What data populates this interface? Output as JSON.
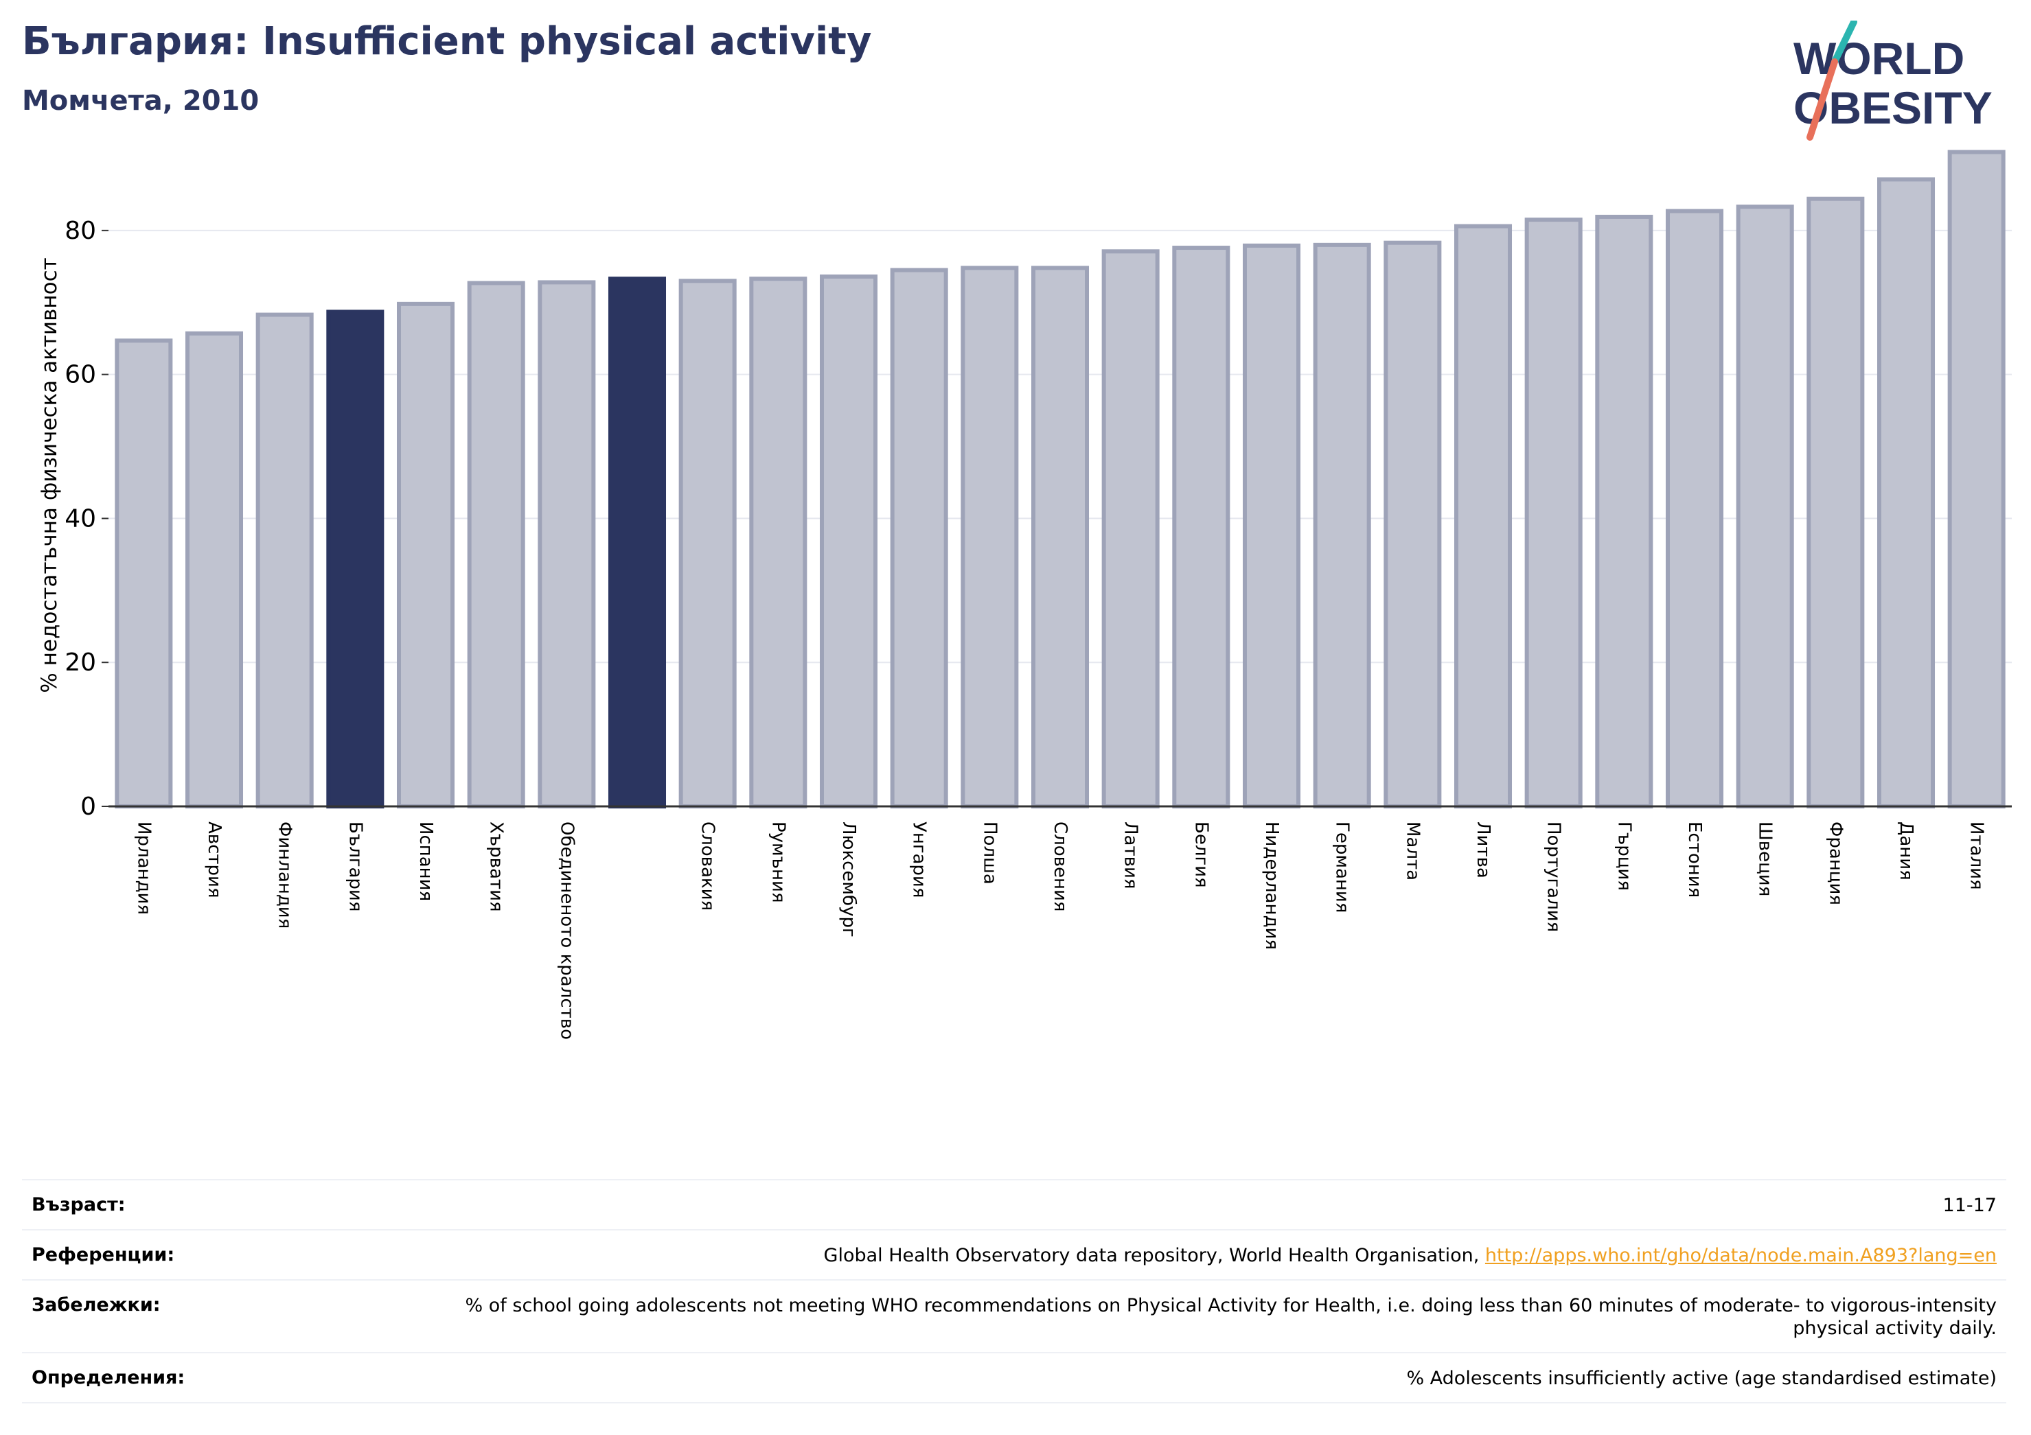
{
  "header": {
    "title": "България: Insufficient physical activity",
    "subtitle": "Момчета, 2010"
  },
  "logo": {
    "line1": "WORLD",
    "line2": "OBESITY",
    "colors": {
      "text": "#2b3560",
      "slash_top": "#2bb5b0",
      "slash_bottom": "#e8705a"
    }
  },
  "chart_data": {
    "type": "bar",
    "ylabel": "% недостатъчна физическа активност",
    "ylim": [
      0,
      92
    ],
    "yticks": [
      0,
      20,
      40,
      60,
      80
    ],
    "grid": true,
    "categories": [
      "Ирландия",
      "Австрия",
      "Финландия",
      "България",
      "Испания",
      "Хърватия",
      "Обединеното кралство",
      "",
      "Словакия",
      "Румъния",
      "Люксембург",
      "Унгария",
      "Полша",
      "Словения",
      "Латвия",
      "Белгия",
      "Нидерландия",
      "Германия",
      "Малта",
      "Литва",
      "Португалия",
      "Гърция",
      "Естония",
      "Швеция",
      "Франция",
      "Дания",
      "Италия"
    ],
    "values": [
      64.7,
      65.7,
      68.3,
      68.7,
      69.8,
      72.7,
      72.8,
      73.3,
      73.0,
      73.3,
      73.6,
      74.5,
      74.8,
      74.8,
      77.1,
      77.6,
      77.9,
      78.0,
      78.3,
      80.6,
      81.5,
      81.9,
      82.7,
      83.3,
      84.4,
      87.1,
      90.9
    ],
    "highlighted": [
      3,
      7
    ],
    "colors": {
      "default_fill": "#c0c3d0",
      "default_stroke": "#9ea3b8",
      "highlight_fill": "#2b3560",
      "grid": "#e6e8ef",
      "axis": "#333333"
    }
  },
  "info": [
    {
      "label": "Възраст:",
      "value": "11-17"
    },
    {
      "label": "Референции:",
      "value": "Global Health Observatory data repository, World Health Organisation, ",
      "link": "http://apps.who.int/gho/data/node.main.A893?lang=en"
    },
    {
      "label": "Забележки:",
      "value": "% of school going adolescents not meeting WHO recommendations on Physical Activity for Health, i.e. doing less than 60 minutes of moderate- to vigorous-intensity physical activity daily."
    },
    {
      "label": "Определения:",
      "value": "% Adolescents insufficiently active (age standardised estimate)"
    }
  ]
}
